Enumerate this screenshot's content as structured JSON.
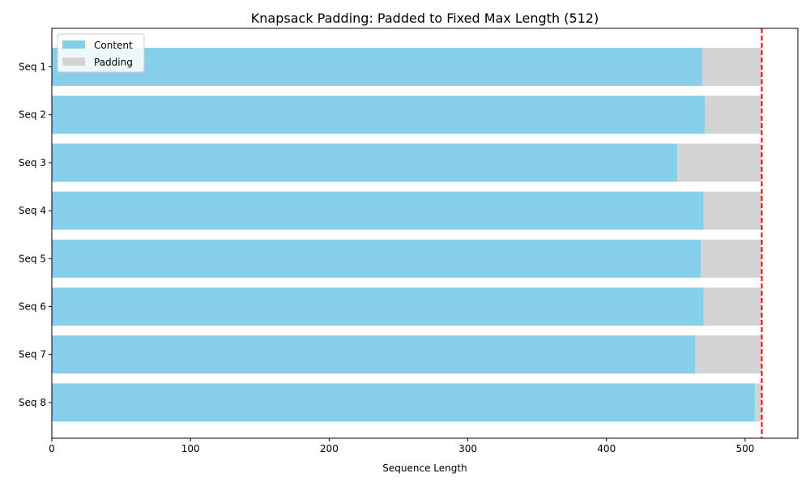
{
  "chart_data": {
    "type": "bar",
    "orientation": "horizontal",
    "stacked": true,
    "title": "Knapsack Padding: Padded to Fixed Max Length (512)",
    "xlabel": "Sequence Length",
    "ylabel": "",
    "xlim": [
      0,
      538
    ],
    "xticks": [
      0,
      100,
      200,
      300,
      400,
      500
    ],
    "categories": [
      "Seq 1",
      "Seq 2",
      "Seq 3",
      "Seq 4",
      "Seq 5",
      "Seq 6",
      "Seq 7",
      "Seq 8"
    ],
    "series": [
      {
        "name": "Content",
        "color": "#87ceeb",
        "values": [
          469,
          471,
          451,
          470,
          468,
          470,
          464,
          507
        ]
      },
      {
        "name": "Padding",
        "color": "#d3d3d3",
        "values": [
          43,
          41,
          61,
          42,
          44,
          42,
          48,
          5
        ]
      }
    ],
    "reference_line": {
      "x": 512,
      "color": "#ff0000",
      "style": "dashed"
    },
    "legend_position": "top-left",
    "grid": false
  }
}
